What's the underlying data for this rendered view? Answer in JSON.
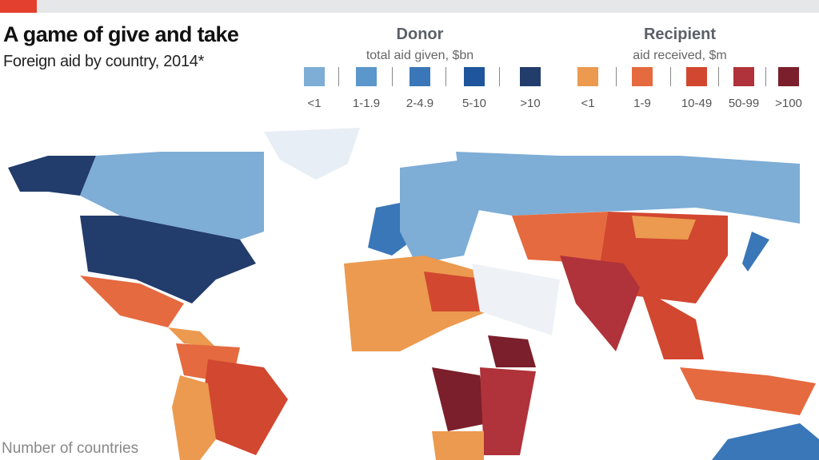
{
  "header": {
    "title": "A game of give and take",
    "subtitle": "Foreign aid by country, 2014*"
  },
  "legend": {
    "donor": {
      "title": "Donor",
      "subtitle": "total aid given, $bn",
      "items": [
        {
          "label": "<1",
          "color": "#7eadd6"
        },
        {
          "label": "1-1.9",
          "color": "#5b97cb"
        },
        {
          "label": "2-4.9",
          "color": "#3a77b8"
        },
        {
          "label": "5-10",
          "color": "#1f559c"
        },
        {
          "label": ">10",
          "color": "#223c6b"
        }
      ]
    },
    "recipient": {
      "title": "Recipient",
      "subtitle": "aid received, $m",
      "items": [
        {
          "label": "<1",
          "color": "#eb9a4f"
        },
        {
          "label": "1-9",
          "color": "#e56a3f"
        },
        {
          "label": "10-49",
          "color": "#d2472f"
        },
        {
          "label": "50-99",
          "color": "#b0323a"
        },
        {
          "label": ">100",
          "color": "#7a1f2b"
        }
      ]
    }
  },
  "footer": {
    "text": "Number of countries"
  }
}
